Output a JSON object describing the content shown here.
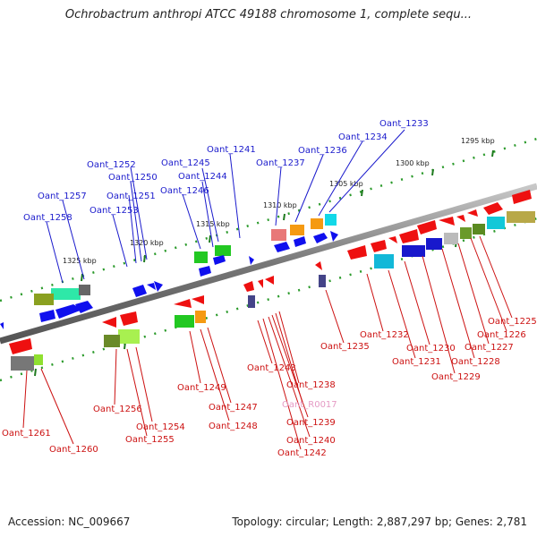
{
  "title": "Ochrobactrum anthropi ATCC 49188 chromosome 1, complete sequ...",
  "footer": {
    "accession": "Accession: NC_009667",
    "stats": "Topology: circular; Length: 2,887,297 bp; Genes: 2,781"
  },
  "scale_labels": [
    "1295 kbp",
    "1300 kbp",
    "1305 kbp",
    "1310 kbp",
    "1315 kbp",
    "1320 kbp",
    "1325 kbp"
  ],
  "top_genes": [
    "Oant_1233",
    "Oant_1234",
    "Oant_1236",
    "Oant_1237",
    "Oant_1241",
    "Oant_1245",
    "Oant_1244",
    "Oant_1246",
    "Oant_1252",
    "Oant_1250",
    "Oant_1251",
    "Oant_1253",
    "Oant_1257",
    "Oant_1258"
  ],
  "bottom_genes": [
    "Oant_1225",
    "Oant_1226",
    "Oant_1227",
    "Oant_1228",
    "Oant_1229",
    "Oant_1230",
    "Oant_1231",
    "Oant_1232",
    "Oant_1235",
    "Oant_1238",
    "Oant_R0017",
    "Oant_1239",
    "Oant_1240",
    "Oant_1242",
    "Oant_1243",
    "Oant_1247",
    "Oant_1248",
    "Oant_1249",
    "Oant_1254",
    "Oant_1255",
    "Oant_1256",
    "Oant_1260",
    "Oant_1261"
  ],
  "colors": {
    "forward_label": "#1a1acc",
    "reverse_label": "#cc1111",
    "rna_label": "#e59ac4",
    "backbone": "#8a8a8a",
    "scale_dots": "#2a9a2a"
  }
}
